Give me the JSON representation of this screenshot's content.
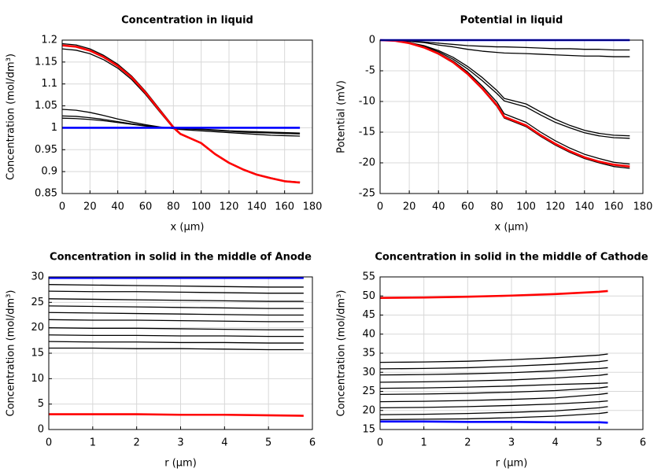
{
  "chart_data": [
    {
      "type": "line",
      "title": "Concentration in liquid",
      "xlabel": "x (μm)",
      "ylabel": "Concentration (mol/dm³)",
      "x": [
        0,
        10,
        20,
        30,
        40,
        50,
        60,
        70,
        80,
        85,
        100,
        110,
        120,
        130,
        140,
        150,
        160,
        171
      ],
      "xlim": [
        0,
        180
      ],
      "xticks": [
        0,
        20,
        40,
        60,
        80,
        100,
        120,
        140,
        160,
        180
      ],
      "ylim": [
        0.85,
        1.2
      ],
      "yticks": [
        0.85,
        0.9,
        0.95,
        1,
        1.05,
        1.1,
        1.15,
        1.2
      ],
      "grid": true,
      "series": [
        {
          "color": "#000000",
          "values": [
            1.192,
            1.189,
            1.18,
            1.165,
            1.145,
            1.118,
            1.083,
            1.043,
            1.003,
            0.987,
            0.966,
            0.941,
            0.921,
            0.906,
            0.894,
            0.886,
            0.879,
            0.876
          ]
        },
        {
          "color": "#000000",
          "values": [
            1.18,
            1.177,
            1.169,
            1.155,
            1.136,
            1.11,
            1.076,
            1.037,
            0.999,
            0.985,
            0.965,
            0.94,
            0.92,
            0.905,
            0.893,
            0.885,
            0.878,
            0.876
          ]
        },
        {
          "color": "#000000",
          "values": [
            1.042,
            1.04,
            1.035,
            1.028,
            1.02,
            1.013,
            1.007,
            1.002,
            0.998,
            0.996,
            0.993,
            0.991,
            0.989,
            0.987,
            0.985,
            0.983,
            0.982,
            0.981
          ]
        },
        {
          "color": "#000000",
          "values": [
            1.027,
            1.026,
            1.023,
            1.019,
            1.014,
            1.009,
            1.005,
            1.001,
            0.999,
            0.998,
            0.996,
            0.994,
            0.992,
            0.99,
            0.989,
            0.988,
            0.987,
            0.986
          ]
        },
        {
          "color": "#000000",
          "values": [
            1.022,
            1.021,
            1.019,
            1.016,
            1.012,
            1.008,
            1.004,
            1.001,
            0.999,
            0.998,
            0.997,
            0.995,
            0.993,
            0.992,
            0.991,
            0.99,
            0.989,
            0.988
          ]
        },
        {
          "color": "#ff0000",
          "values": [
            1.188,
            1.185,
            1.176,
            1.161,
            1.141,
            1.115,
            1.08,
            1.04,
            1.001,
            0.986,
            0.965,
            0.94,
            0.92,
            0.905,
            0.893,
            0.885,
            0.878,
            0.875
          ]
        },
        {
          "color": "#0000ff",
          "values": [
            1,
            1,
            1,
            1,
            1,
            1,
            1,
            1,
            1,
            1,
            1,
            1,
            1,
            1,
            1,
            1,
            1,
            1
          ]
        }
      ]
    },
    {
      "type": "line",
      "title": "Potential in liquid",
      "xlabel": "x (μm)",
      "ylabel": "Potential (mV)",
      "x": [
        0,
        10,
        20,
        30,
        40,
        50,
        60,
        70,
        80,
        85,
        100,
        110,
        120,
        130,
        140,
        150,
        160,
        171
      ],
      "xlim": [
        0,
        180
      ],
      "xticks": [
        0,
        20,
        40,
        60,
        80,
        100,
        120,
        140,
        160,
        180
      ],
      "ylim": [
        -25,
        0
      ],
      "yticks": [
        -25,
        -20,
        -15,
        -10,
        -5,
        0
      ],
      "grid": true,
      "series": [
        {
          "color": "#000000",
          "values": [
            0,
            -0.1,
            -0.5,
            -1.2,
            -2.3,
            -3.7,
            -5.6,
            -8,
            -10.8,
            -12.7,
            -14.1,
            -15.7,
            -17.1,
            -18.3,
            -19.3,
            -20,
            -20.6,
            -20.9
          ]
        },
        {
          "color": "#000000",
          "values": [
            0,
            -0.1,
            -0.4,
            -1.1,
            -2.1,
            -3.4,
            -5.2,
            -7.5,
            -10.1,
            -12,
            -13.4,
            -15,
            -16.4,
            -17.6,
            -18.6,
            -19.3,
            -19.9,
            -20.2
          ]
        },
        {
          "color": "#000000",
          "values": [
            0,
            -0.1,
            -0.4,
            -0.9,
            -1.7,
            -2.8,
            -4.3,
            -6.1,
            -8.2,
            -9.5,
            -10.4,
            -11.7,
            -12.9,
            -13.9,
            -14.7,
            -15.2,
            -15.5,
            -15.6
          ]
        },
        {
          "color": "#000000",
          "values": [
            0,
            -0.1,
            -0.4,
            -1,
            -1.9,
            -3.1,
            -4.7,
            -6.6,
            -8.7,
            -9.9,
            -10.9,
            -12.2,
            -13.4,
            -14.3,
            -15.1,
            -15.6,
            -15.9,
            -16
          ]
        },
        {
          "color": "#000000",
          "values": [
            0,
            0,
            -0.1,
            -0.3,
            -0.5,
            -0.7,
            -0.9,
            -1,
            -1.1,
            -1.1,
            -1.2,
            -1.3,
            -1.4,
            -1.4,
            -1.5,
            -1.5,
            -1.6,
            -1.6
          ]
        },
        {
          "color": "#000000",
          "values": [
            0,
            0,
            -0.2,
            -0.4,
            -0.8,
            -1.1,
            -1.5,
            -1.8,
            -2,
            -2.1,
            -2.2,
            -2.3,
            -2.4,
            -2.5,
            -2.6,
            -2.6,
            -2.7,
            -2.7
          ]
        },
        {
          "color": "#ff0000",
          "values": [
            0,
            -0.1,
            -0.5,
            -1.2,
            -2.2,
            -3.6,
            -5.5,
            -7.9,
            -10.6,
            -12.5,
            -13.9,
            -15.5,
            -16.9,
            -18.1,
            -19.1,
            -19.8,
            -20.3,
            -20.6
          ]
        },
        {
          "color": "#0000ff",
          "values": [
            0,
            0,
            0,
            0,
            0,
            0,
            0,
            0,
            0,
            0,
            0,
            0,
            0,
            0,
            0,
            0,
            0,
            0
          ]
        }
      ]
    },
    {
      "type": "line",
      "title": "Concentration in solid in the middle of Anode",
      "xlabel": "r (μm)",
      "ylabel": "Concentration (mol/dm³)",
      "x": [
        0,
        1,
        2,
        3,
        4,
        5,
        5.8
      ],
      "xlim": [
        0,
        6
      ],
      "xticks": [
        0,
        1,
        2,
        3,
        4,
        5,
        6
      ],
      "ylim": [
        0,
        30
      ],
      "yticks": [
        0,
        5,
        10,
        15,
        20,
        25,
        30
      ],
      "grid": true,
      "series": [
        {
          "color": "#000000",
          "values": [
            28.5,
            28.4,
            28.3,
            28.2,
            28.1,
            28.0,
            28.0
          ]
        },
        {
          "color": "#000000",
          "values": [
            27.2,
            27.1,
            27.1,
            27.0,
            26.9,
            26.8,
            26.8
          ]
        },
        {
          "color": "#000000",
          "values": [
            25.7,
            25.6,
            25.5,
            25.4,
            25.3,
            25.2,
            25.2
          ]
        },
        {
          "color": "#000000",
          "values": [
            24.3,
            24.2,
            24.1,
            24.0,
            23.9,
            23.8,
            23.8
          ]
        },
        {
          "color": "#000000",
          "values": [
            23.0,
            22.9,
            22.8,
            22.7,
            22.6,
            22.5,
            22.5
          ]
        },
        {
          "color": "#000000",
          "values": [
            21.6,
            21.5,
            21.5,
            21.4,
            21.3,
            21.2,
            21.2
          ]
        },
        {
          "color": "#000000",
          "values": [
            20.0,
            19.9,
            19.9,
            19.8,
            19.7,
            19.6,
            19.6
          ]
        },
        {
          "color": "#000000",
          "values": [
            18.6,
            18.5,
            18.5,
            18.4,
            18.4,
            18.3,
            18.3
          ]
        },
        {
          "color": "#000000",
          "values": [
            17.3,
            17.2,
            17.2,
            17.1,
            17.1,
            17.0,
            17.0
          ]
        },
        {
          "color": "#000000",
          "values": [
            16.0,
            16.0,
            15.9,
            15.9,
            15.8,
            15.7,
            15.7
          ]
        },
        {
          "color": "#ff0000",
          "values": [
            3.0,
            3.0,
            3.0,
            2.9,
            2.9,
            2.8,
            2.7
          ]
        },
        {
          "color": "#0000ff",
          "values": [
            29.8,
            29.8,
            29.8,
            29.8,
            29.8,
            29.8,
            29.8
          ]
        }
      ]
    },
    {
      "type": "line",
      "title": "Concentration in solid in the middle of Cathode",
      "xlabel": "r (μm)",
      "ylabel": "Concentration (mol/dm³)",
      "x": [
        0,
        1,
        2,
        3,
        4,
        5,
        5.2
      ],
      "xlim": [
        0,
        6
      ],
      "xticks": [
        0,
        1,
        2,
        3,
        4,
        5,
        6
      ],
      "ylim": [
        15,
        55
      ],
      "yticks": [
        15,
        20,
        25,
        30,
        35,
        40,
        45,
        50,
        55
      ],
      "grid": true,
      "series": [
        {
          "color": "#000000",
          "values": [
            32.6,
            32.7,
            32.9,
            33.3,
            33.8,
            34.5,
            34.8
          ]
        },
        {
          "color": "#000000",
          "values": [
            30.9,
            31.0,
            31.2,
            31.6,
            32.1,
            32.8,
            33.1
          ]
        },
        {
          "color": "#000000",
          "values": [
            29.3,
            29.4,
            29.6,
            29.9,
            30.4,
            31.0,
            31.2
          ]
        },
        {
          "color": "#000000",
          "values": [
            27.4,
            27.5,
            27.7,
            28.0,
            28.5,
            29.2,
            29.5
          ]
        },
        {
          "color": "#000000",
          "values": [
            25.8,
            25.9,
            26.1,
            26.4,
            26.8,
            27.1,
            27.2
          ]
        },
        {
          "color": "#000000",
          "values": [
            24.2,
            24.3,
            24.5,
            24.8,
            25.2,
            25.9,
            26.2
          ]
        },
        {
          "color": "#000000",
          "values": [
            22.3,
            22.4,
            22.6,
            22.9,
            23.3,
            24.2,
            24.5
          ]
        },
        {
          "color": "#000000",
          "values": [
            20.7,
            20.8,
            21.0,
            21.3,
            21.7,
            22.3,
            22.5
          ]
        },
        {
          "color": "#000000",
          "values": [
            18.9,
            19.0,
            19.2,
            19.5,
            19.9,
            20.7,
            21.0
          ]
        },
        {
          "color": "#000000",
          "values": [
            17.6,
            17.7,
            17.8,
            18.1,
            18.5,
            19.2,
            19.5
          ]
        },
        {
          "color": "#ff0000",
          "values": [
            49.5,
            49.6,
            49.8,
            50.1,
            50.5,
            51.1,
            51.3
          ]
        },
        {
          "color": "#0000ff",
          "values": [
            17.1,
            17.1,
            17.0,
            17.0,
            16.9,
            16.9,
            16.8
          ]
        }
      ]
    }
  ]
}
